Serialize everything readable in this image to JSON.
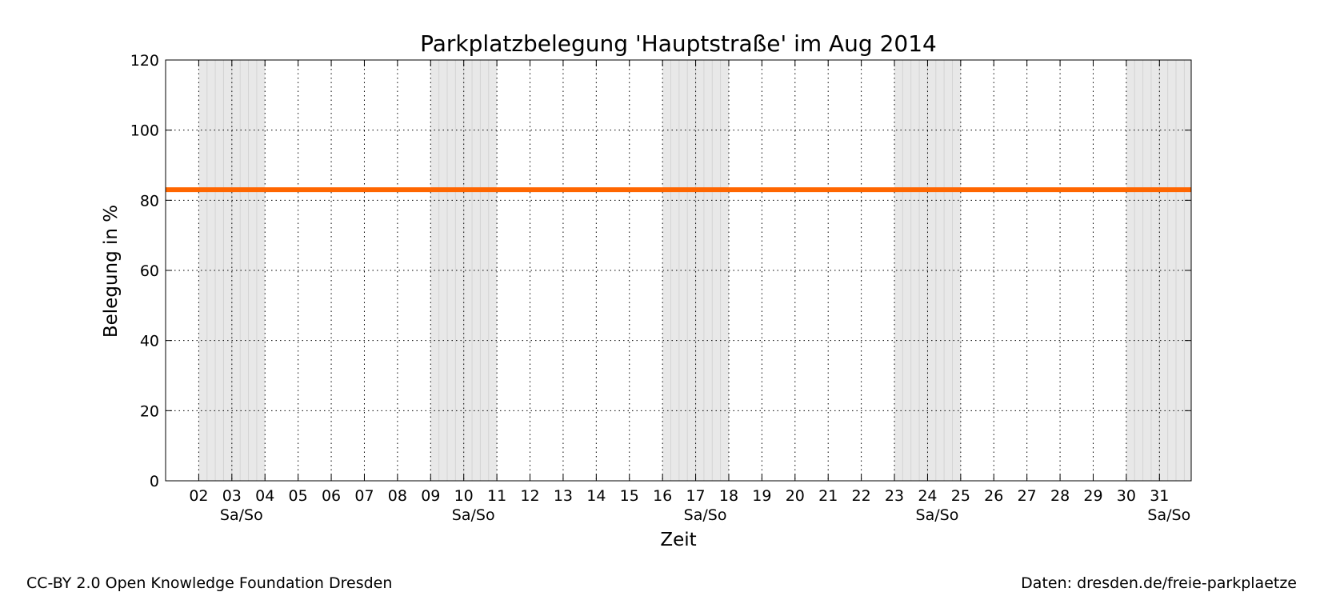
{
  "chart_data": {
    "type": "line",
    "title": "Parkplatzbelegung 'Hauptstraße' im Aug 2014",
    "xlabel": "Zeit",
    "ylabel": "Belegung in %",
    "ylim": [
      0,
      120
    ],
    "yticks": [
      0,
      20,
      40,
      60,
      80,
      100,
      120
    ],
    "xlim": [
      "2014-08-01",
      "2014-08-31T23:00"
    ],
    "xtick_labels": [
      "02",
      "03",
      "04",
      "05",
      "06",
      "07",
      "08",
      "09",
      "10",
      "11",
      "12",
      "13",
      "14",
      "15",
      "16",
      "17",
      "18",
      "19",
      "20",
      "21",
      "22",
      "23",
      "24",
      "25",
      "26",
      "27",
      "28",
      "29",
      "30",
      "31"
    ],
    "xticks": [
      "2014-08-02",
      "2014-08-03",
      "2014-08-04",
      "2014-08-05",
      "2014-08-06",
      "2014-08-07",
      "2014-08-08",
      "2014-08-09",
      "2014-08-10",
      "2014-08-11",
      "2014-08-12",
      "2014-08-13",
      "2014-08-14",
      "2014-08-15",
      "2014-08-16",
      "2014-08-17",
      "2014-08-18",
      "2014-08-19",
      "2014-08-20",
      "2014-08-21",
      "2014-08-22",
      "2014-08-23",
      "2014-08-24",
      "2014-08-25",
      "2014-08-26",
      "2014-08-27",
      "2014-08-28",
      "2014-08-29",
      "2014-08-30",
      "2014-08-31"
    ],
    "weekend_label": "Sa/So",
    "weekends": [
      {
        "start": "2014-08-02",
        "end": "2014-08-04"
      },
      {
        "start": "2014-08-09",
        "end": "2014-08-11"
      },
      {
        "start": "2014-08-16",
        "end": "2014-08-18"
      },
      {
        "start": "2014-08-23",
        "end": "2014-08-25"
      },
      {
        "start": "2014-08-30",
        "end": "2014-08-31T23:00"
      }
    ],
    "series": [
      {
        "x": [
          "2014-08-01",
          "2014-08-31T23:00"
        ],
        "values": [
          83,
          83
        ],
        "color": "#ff6600"
      }
    ],
    "grid": true
  },
  "footer": {
    "license": "CC-BY 2.0 Open Knowledge Foundation Dresden",
    "source": "Daten: dresden.de/freie-parkplaetze"
  }
}
